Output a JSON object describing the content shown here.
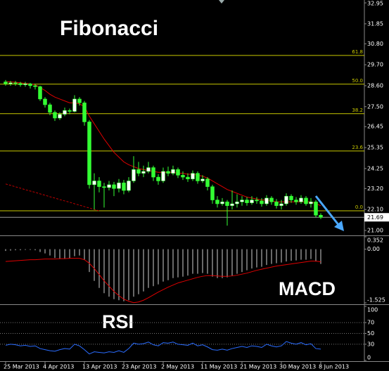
{
  "chart_data": [
    {
      "type": "candlestick",
      "title": "Fibonacci",
      "categories": [
        "25 Mar 2013",
        null,
        null,
        null,
        null,
        null,
        null,
        null,
        "4 Apr 2013",
        null,
        null,
        null,
        null,
        null,
        null,
        null,
        "13 Apr 2013",
        null,
        null,
        null,
        null,
        null,
        null,
        null,
        "23 Apr 2013",
        null,
        null,
        null,
        null,
        null,
        null,
        null,
        "2 May 2013",
        null,
        null,
        null,
        null,
        null,
        null,
        null,
        "11 May 2013",
        null,
        null,
        null,
        null,
        null,
        null,
        null,
        "21 May 2013",
        null,
        null,
        null,
        null,
        null,
        null,
        null,
        "30 May 2013",
        null,
        null,
        null,
        null,
        null,
        null,
        null,
        "8 Jun 2013"
      ],
      "open": [
        28.8,
        28.7,
        28.75,
        28.72,
        28.65,
        28.7,
        28.6,
        28.55,
        27.9,
        27.6,
        27.2,
        26.9,
        27.1,
        27.3,
        27.25,
        27.9,
        27.7,
        26.7,
        23.4,
        23.6,
        23.3,
        23.25,
        23.4,
        23.2,
        23.5,
        23.1,
        23.6,
        24.2,
        24.0,
        24.1,
        24.3,
        23.8,
        23.6,
        24.1,
        24.0,
        24.2,
        23.9,
        23.8,
        23.7,
        24.0,
        23.6,
        23.7,
        23.3,
        22.6,
        22.4,
        22.5,
        22.3,
        22.4,
        22.5,
        22.6,
        22.45,
        22.6,
        22.55,
        22.4,
        22.7,
        22.5,
        22.3,
        22.4,
        22.8,
        22.6,
        22.5,
        22.7,
        22.4,
        22.5,
        21.8
      ],
      "high": [
        28.9,
        28.85,
        28.85,
        28.8,
        28.8,
        28.75,
        28.7,
        28.6,
        28.0,
        27.7,
        27.3,
        27.2,
        27.45,
        27.4,
        28.1,
        28.0,
        27.8,
        26.8,
        24.0,
        23.8,
        23.5,
        23.6,
        23.55,
        23.7,
        23.65,
        23.8,
        24.9,
        24.6,
        24.4,
        24.6,
        24.4,
        23.95,
        24.3,
        24.35,
        24.4,
        24.3,
        24.1,
        24.0,
        24.15,
        24.1,
        23.9,
        23.8,
        23.4,
        22.8,
        22.7,
        22.6,
        23.1,
        22.9,
        22.8,
        22.75,
        22.8,
        22.75,
        22.7,
        22.85,
        22.8,
        22.65,
        22.6,
        22.95,
        22.9,
        22.75,
        22.85,
        22.8,
        22.7,
        22.6,
        21.9
      ],
      "low": [
        28.6,
        28.6,
        28.6,
        28.55,
        28.55,
        28.45,
        28.4,
        27.8,
        27.45,
        27.05,
        26.75,
        26.8,
        27.0,
        27.1,
        27.2,
        27.55,
        26.5,
        23.2,
        22.1,
        23.0,
        22.2,
        23.1,
        22.8,
        23.0,
        22.9,
        23.0,
        23.5,
        23.85,
        23.8,
        24.0,
        23.6,
        23.4,
        23.5,
        23.85,
        23.9,
        23.75,
        23.65,
        23.55,
        23.6,
        23.45,
        23.5,
        23.1,
        22.4,
        22.2,
        22.3,
        21.25,
        22.1,
        22.2,
        22.3,
        22.3,
        22.35,
        22.4,
        22.25,
        22.3,
        22.35,
        22.15,
        22.1,
        22.3,
        22.45,
        22.35,
        22.4,
        22.3,
        22.2,
        21.7,
        21.6
      ],
      "close": [
        28.7,
        28.75,
        28.72,
        28.65,
        28.7,
        28.6,
        28.55,
        27.9,
        27.6,
        27.2,
        26.9,
        27.1,
        27.3,
        27.25,
        27.9,
        27.7,
        26.7,
        23.4,
        23.6,
        23.3,
        23.25,
        23.4,
        23.2,
        23.5,
        23.1,
        23.6,
        24.2,
        24.0,
        24.1,
        24.3,
        23.8,
        23.6,
        24.1,
        24.0,
        24.2,
        23.9,
        23.8,
        23.7,
        24.0,
        23.6,
        23.7,
        23.3,
        22.6,
        22.4,
        22.5,
        22.3,
        22.4,
        22.5,
        22.6,
        22.45,
        22.6,
        22.55,
        22.4,
        22.7,
        22.5,
        22.3,
        22.4,
        22.8,
        22.6,
        22.5,
        22.7,
        22.4,
        22.5,
        21.8,
        21.69
      ],
      "up_color": "#ffffff",
      "down_color": "#33ff33",
      "wick_color": "#33ff33",
      "overlays": [
        {
          "color": "#e00000",
          "dash": false,
          "values": [
            28.8,
            28.8,
            28.78,
            28.75,
            28.72,
            28.7,
            28.65,
            28.5,
            28.35,
            28.15,
            28.0,
            27.9,
            27.8,
            27.7,
            27.7,
            27.65,
            27.5,
            27.0,
            26.6,
            26.2,
            25.8,
            25.45,
            25.1,
            24.85,
            24.6,
            24.45,
            24.35,
            24.25,
            24.2,
            24.15,
            24.1,
            24.05,
            24.05,
            24.05,
            24.05,
            24.0,
            24.0,
            23.95,
            23.95,
            23.9,
            23.85,
            23.75,
            23.6,
            23.45,
            23.3,
            23.15,
            23.05,
            22.95,
            22.85,
            22.75,
            22.7,
            22.65,
            22.6,
            22.6,
            22.55,
            22.5,
            22.5,
            22.5,
            22.5,
            22.5,
            22.5,
            22.5,
            22.5,
            22.4,
            22.3
          ]
        },
        {
          "color": "#c00000",
          "dash": true,
          "values": [
            23.44,
            23.37,
            23.29,
            23.22,
            23.14,
            23.07,
            23.0,
            22.92,
            22.85,
            22.77,
            22.7,
            22.62,
            22.55,
            22.48,
            22.4,
            22.33,
            22.25,
            22.18,
            22.1,
            22.03,
            null,
            null,
            null,
            null,
            null,
            null,
            null,
            null,
            null,
            null,
            null,
            null,
            null,
            null,
            null,
            null,
            null,
            null,
            null,
            null,
            null,
            null,
            null,
            null,
            null,
            null,
            null,
            null,
            null,
            null,
            null,
            null,
            null,
            null,
            null,
            null,
            null,
            null,
            null,
            null,
            null,
            null,
            null,
            null,
            null
          ]
        }
      ],
      "fib_color": "#c8c800",
      "fib_levels": [
        {
          "label": "61.8",
          "price": 30.19
        },
        {
          "label": "50.0",
          "price": 28.68
        },
        {
          "label": "38.2",
          "price": 27.13
        },
        {
          "label": "23.6",
          "price": 25.17
        },
        {
          "label": "0.0",
          "price": 22.03
        }
      ],
      "last_price": 21.69,
      "ylim": [
        20.74,
        33.1
      ],
      "yticks": [
        32.95,
        31.85,
        {
          "value": 30.8,
          "label": "30.80"
        },
        {
          "value": 29.7,
          "label": "29.70"
        },
        {
          "value": 28.6,
          "label": "28.60"
        },
        {
          "value": 27.5,
          "label": "27.50"
        },
        26.45,
        25.35,
        24.25,
        {
          "value": 23.2,
          "label": "23.20"
        },
        {
          "value": 22.1,
          "label": "22.10"
        },
        {
          "value": 21.0,
          "label": "21.00"
        }
      ],
      "grid": false
    },
    {
      "type": "macd",
      "title": "MACD",
      "histogram": [
        -0.05,
        -0.04,
        -0.03,
        -0.03,
        -0.02,
        -0.02,
        -0.03,
        -0.08,
        -0.12,
        -0.18,
        -0.25,
        -0.28,
        -0.27,
        -0.26,
        -0.2,
        -0.18,
        -0.3,
        -0.65,
        -0.9,
        -1.1,
        -1.25,
        -1.35,
        -1.42,
        -1.45,
        -1.48,
        -1.45,
        -1.35,
        -1.28,
        -1.2,
        -1.1,
        -1.05,
        -1.0,
        -0.92,
        -0.88,
        -0.82,
        -0.8,
        -0.78,
        -0.75,
        -0.7,
        -0.7,
        -0.68,
        -0.7,
        -0.78,
        -0.82,
        -0.82,
        -0.8,
        -0.75,
        -0.7,
        -0.65,
        -0.6,
        -0.55,
        -0.52,
        -0.5,
        -0.45,
        -0.42,
        -0.4,
        -0.38,
        -0.35,
        -0.33,
        -0.32,
        -0.3,
        -0.3,
        -0.28,
        -0.35,
        -0.42
      ],
      "signal": [
        -0.35,
        -0.34,
        -0.33,
        -0.32,
        -0.31,
        -0.3,
        -0.3,
        -0.29,
        -0.28,
        -0.28,
        -0.28,
        -0.27,
        -0.27,
        -0.26,
        -0.26,
        -0.26,
        -0.3,
        -0.4,
        -0.55,
        -0.72,
        -0.9,
        -1.05,
        -1.2,
        -1.32,
        -1.42,
        -1.48,
        -1.52,
        -1.5,
        -1.45,
        -1.38,
        -1.3,
        -1.22,
        -1.15,
        -1.08,
        -1.02,
        -0.96,
        -0.92,
        -0.88,
        -0.84,
        -0.8,
        -0.77,
        -0.75,
        -0.75,
        -0.76,
        -0.77,
        -0.77,
        -0.76,
        -0.74,
        -0.71,
        -0.68,
        -0.64,
        -0.6,
        -0.57,
        -0.54,
        -0.51,
        -0.48,
        -0.46,
        -0.44,
        -0.42,
        -0.4,
        -0.38,
        -0.36,
        -0.34,
        -0.34,
        -0.36
      ],
      "histogram_color": "#d0d0d0",
      "signal_color": "#e00000",
      "ylim": [
        -1.525,
        0.352
      ],
      "yticks": [
        0.352,
        {
          "value": 0,
          "label": "0.00"
        },
        -1.525
      ],
      "grid": false
    },
    {
      "type": "line",
      "title": "RSI",
      "values": [
        28,
        30,
        29,
        27,
        28,
        26,
        27,
        22,
        20,
        18,
        17,
        20,
        22,
        21,
        30,
        27,
        20,
        12,
        16,
        15,
        14,
        16,
        15,
        18,
        15,
        22,
        32,
        30,
        31,
        34,
        29,
        27,
        33,
        32,
        34,
        30,
        29,
        28,
        32,
        27,
        29,
        25,
        20,
        19,
        21,
        19,
        22,
        24,
        26,
        24,
        27,
        26,
        24,
        30,
        27,
        25,
        27,
        35,
        32,
        30,
        33,
        29,
        31,
        22,
        21
      ],
      "color": "#2a6cff",
      "ylim": [
        0,
        100
      ],
      "yticks": [
        100,
        70,
        50,
        30,
        0
      ],
      "grid": true
    }
  ]
}
